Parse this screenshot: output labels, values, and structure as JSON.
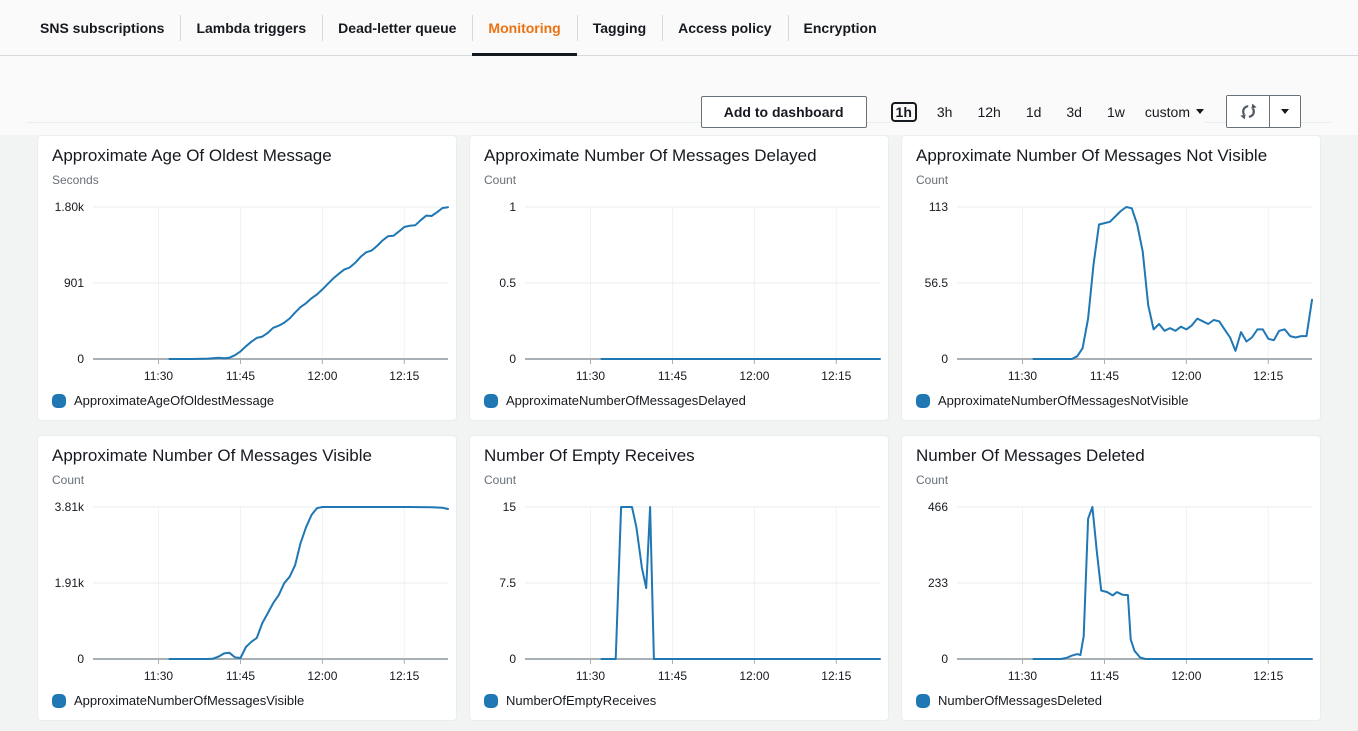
{
  "tabs": {
    "items": [
      {
        "label": "SNS subscriptions",
        "active": false
      },
      {
        "label": "Lambda triggers",
        "active": false
      },
      {
        "label": "Dead-letter queue",
        "active": false
      },
      {
        "label": "Monitoring",
        "active": true
      },
      {
        "label": "Tagging",
        "active": false
      },
      {
        "label": "Access policy",
        "active": false
      },
      {
        "label": "Encryption",
        "active": false
      }
    ]
  },
  "toolbar": {
    "add_to_dashboard": "Add to dashboard",
    "ranges": [
      {
        "label": "1h",
        "selected": true
      },
      {
        "label": "3h",
        "selected": false
      },
      {
        "label": "12h",
        "selected": false
      },
      {
        "label": "1d",
        "selected": false
      },
      {
        "label": "3d",
        "selected": false
      },
      {
        "label": "1w",
        "selected": false
      }
    ],
    "custom_label": "custom"
  },
  "colors": {
    "accent_orange": "#ec7211",
    "series_blue": "#1f77b4",
    "tab_underline": "#16191f",
    "axis_gray": "#a7b1b5",
    "grid_gray": "#e9eded"
  },
  "chart_data": [
    {
      "type": "line",
      "title": "Approximate Age Of Oldest Message",
      "ylabel": "Seconds",
      "legend": "ApproximateAgeOfOldestMessage",
      "color": "#1f77b4",
      "ymax": 1802,
      "yticks": [
        {
          "value": 0,
          "label": "0"
        },
        {
          "value": 901,
          "label": "901"
        },
        {
          "value": 1802,
          "label": "1.80k"
        }
      ],
      "x_domain_minutes": [
        678,
        743
      ],
      "xticks": [
        {
          "minute": 690,
          "label": "11:30"
        },
        {
          "minute": 705,
          "label": "11:45"
        },
        {
          "minute": 720,
          "label": "12:00"
        },
        {
          "minute": 735,
          "label": "12:15"
        }
      ],
      "grid": true,
      "legend_position": "bottom",
      "points": [
        [
          692,
          0
        ],
        [
          693,
          0
        ],
        [
          694,
          0
        ],
        [
          695,
          0
        ],
        [
          696,
          0
        ],
        [
          697,
          1
        ],
        [
          698,
          2
        ],
        [
          699,
          5
        ],
        [
          700,
          10
        ],
        [
          701,
          14
        ],
        [
          702,
          10
        ],
        [
          703,
          16
        ],
        [
          704,
          45
        ],
        [
          705,
          90
        ],
        [
          706,
          150
        ],
        [
          707,
          205
        ],
        [
          708,
          250
        ],
        [
          709,
          265
        ],
        [
          710,
          310
        ],
        [
          711,
          370
        ],
        [
          712,
          395
        ],
        [
          713,
          430
        ],
        [
          714,
          480
        ],
        [
          715,
          550
        ],
        [
          716,
          615
        ],
        [
          717,
          660
        ],
        [
          718,
          720
        ],
        [
          719,
          765
        ],
        [
          720,
          825
        ],
        [
          721,
          890
        ],
        [
          722,
          955
        ],
        [
          723,
          1010
        ],
        [
          724,
          1060
        ],
        [
          725,
          1085
        ],
        [
          726,
          1140
        ],
        [
          727,
          1210
        ],
        [
          728,
          1265
        ],
        [
          729,
          1285
        ],
        [
          730,
          1340
        ],
        [
          731,
          1405
        ],
        [
          732,
          1455
        ],
        [
          733,
          1460
        ],
        [
          734,
          1510
        ],
        [
          735,
          1565
        ],
        [
          736,
          1580
        ],
        [
          737,
          1585
        ],
        [
          738,
          1645
        ],
        [
          739,
          1700
        ],
        [
          740,
          1695
        ],
        [
          741,
          1740
        ],
        [
          742,
          1790
        ],
        [
          743,
          1800
        ]
      ]
    },
    {
      "type": "line",
      "title": "Approximate Number Of Messages Delayed",
      "ylabel": "Count",
      "legend": "ApproximateNumberOfMessagesDelayed",
      "color": "#1f77b4",
      "ymax": 1,
      "yticks": [
        {
          "value": 0,
          "label": "0"
        },
        {
          "value": 0.5,
          "label": "0.5"
        },
        {
          "value": 1,
          "label": "1"
        }
      ],
      "x_domain_minutes": [
        678,
        743
      ],
      "xticks": [
        {
          "minute": 690,
          "label": "11:30"
        },
        {
          "minute": 705,
          "label": "11:45"
        },
        {
          "minute": 720,
          "label": "12:00"
        },
        {
          "minute": 735,
          "label": "12:15"
        }
      ],
      "grid": true,
      "legend_position": "bottom",
      "points": [
        [
          692,
          0
        ],
        [
          700,
          0
        ],
        [
          710,
          0
        ],
        [
          720,
          0
        ],
        [
          730,
          0
        ],
        [
          743,
          0
        ]
      ]
    },
    {
      "type": "line",
      "title": "Approximate Number Of Messages Not Visible",
      "ylabel": "Count",
      "legend": "ApproximateNumberOfMessagesNotVisible",
      "color": "#1f77b4",
      "ymax": 113,
      "yticks": [
        {
          "value": 0,
          "label": "0"
        },
        {
          "value": 56.5,
          "label": "56.5"
        },
        {
          "value": 113,
          "label": "113"
        }
      ],
      "x_domain_minutes": [
        678,
        743
      ],
      "xticks": [
        {
          "minute": 690,
          "label": "11:30"
        },
        {
          "minute": 705,
          "label": "11:45"
        },
        {
          "minute": 720,
          "label": "12:00"
        },
        {
          "minute": 735,
          "label": "12:15"
        }
      ],
      "grid": true,
      "legend_position": "bottom",
      "points": [
        [
          692,
          0
        ],
        [
          694,
          0
        ],
        [
          696,
          0
        ],
        [
          698,
          0
        ],
        [
          699,
          0
        ],
        [
          700,
          2
        ],
        [
          701,
          8
        ],
        [
          702,
          30
        ],
        [
          703,
          70
        ],
        [
          704,
          100
        ],
        [
          705,
          101
        ],
        [
          706,
          102
        ],
        [
          707,
          106
        ],
        [
          708,
          110
        ],
        [
          709,
          113
        ],
        [
          710,
          112
        ],
        [
          711,
          100
        ],
        [
          712,
          80
        ],
        [
          713,
          40
        ],
        [
          714,
          22
        ],
        [
          715,
          26
        ],
        [
          716,
          21
        ],
        [
          717,
          23
        ],
        [
          718,
          21
        ],
        [
          719,
          24
        ],
        [
          720,
          22
        ],
        [
          721,
          25
        ],
        [
          722,
          30
        ],
        [
          723,
          28
        ],
        [
          724,
          26
        ],
        [
          725,
          29
        ],
        [
          726,
          28
        ],
        [
          727,
          22
        ],
        [
          728,
          16
        ],
        [
          729,
          6
        ],
        [
          730,
          20
        ],
        [
          731,
          13
        ],
        [
          732,
          16
        ],
        [
          733,
          22
        ],
        [
          734,
          22
        ],
        [
          735,
          15
        ],
        [
          736,
          14
        ],
        [
          737,
          21
        ],
        [
          738,
          22
        ],
        [
          739,
          17
        ],
        [
          740,
          16
        ],
        [
          741,
          17
        ],
        [
          742,
          17
        ],
        [
          743,
          44
        ]
      ]
    },
    {
      "type": "line",
      "title": "Approximate Number Of Messages Visible",
      "ylabel": "Count",
      "legend": "ApproximateNumberOfMessagesVisible",
      "color": "#1f77b4",
      "ymax": 3810,
      "yticks": [
        {
          "value": 0,
          "label": "0"
        },
        {
          "value": 1905,
          "label": "1.91k"
        },
        {
          "value": 3810,
          "label": "3.81k"
        }
      ],
      "x_domain_minutes": [
        678,
        743
      ],
      "xticks": [
        {
          "minute": 690,
          "label": "11:30"
        },
        {
          "minute": 705,
          "label": "11:45"
        },
        {
          "minute": 720,
          "label": "12:00"
        },
        {
          "minute": 735,
          "label": "12:15"
        }
      ],
      "grid": true,
      "legend_position": "bottom",
      "points": [
        [
          692,
          0
        ],
        [
          694,
          0
        ],
        [
          696,
          0
        ],
        [
          698,
          0
        ],
        [
          699,
          0
        ],
        [
          700,
          10
        ],
        [
          701,
          60
        ],
        [
          702,
          140
        ],
        [
          703,
          155
        ],
        [
          704,
          40
        ],
        [
          705,
          25
        ],
        [
          706,
          300
        ],
        [
          707,
          430
        ],
        [
          708,
          530
        ],
        [
          709,
          900
        ],
        [
          710,
          1150
        ],
        [
          711,
          1400
        ],
        [
          712,
          1600
        ],
        [
          713,
          1900
        ],
        [
          714,
          2060
        ],
        [
          715,
          2350
        ],
        [
          716,
          2900
        ],
        [
          717,
          3300
        ],
        [
          718,
          3610
        ],
        [
          719,
          3780
        ],
        [
          720,
          3810
        ],
        [
          724,
          3810
        ],
        [
          728,
          3810
        ],
        [
          732,
          3810
        ],
        [
          736,
          3810
        ],
        [
          740,
          3805
        ],
        [
          742,
          3790
        ],
        [
          743,
          3760
        ]
      ]
    },
    {
      "type": "line",
      "title": "Number Of Empty Receives",
      "ylabel": "Count",
      "legend": "NumberOfEmptyReceives",
      "color": "#1f77b4",
      "ymax": 15,
      "yticks": [
        {
          "value": 0,
          "label": "0"
        },
        {
          "value": 7.5,
          "label": "7.5"
        },
        {
          "value": 15,
          "label": "15"
        }
      ],
      "x_domain_minutes": [
        678,
        743
      ],
      "xticks": [
        {
          "minute": 690,
          "label": "11:30"
        },
        {
          "minute": 705,
          "label": "11:45"
        },
        {
          "minute": 720,
          "label": "12:00"
        },
        {
          "minute": 735,
          "label": "12:15"
        }
      ],
      "grid": true,
      "legend_position": "bottom",
      "points": [
        [
          692,
          0
        ],
        [
          693,
          0
        ],
        [
          694,
          0
        ],
        [
          694.6,
          0
        ],
        [
          695.6,
          15
        ],
        [
          696.6,
          15
        ],
        [
          697.6,
          15
        ],
        [
          698.4,
          13
        ],
        [
          699.4,
          9
        ],
        [
          700.2,
          7
        ],
        [
          700.9,
          15
        ],
        [
          701.6,
          0
        ],
        [
          704,
          0
        ],
        [
          708,
          0
        ],
        [
          714,
          0
        ],
        [
          720,
          0
        ],
        [
          728,
          0
        ],
        [
          736,
          0
        ],
        [
          743,
          0
        ]
      ]
    },
    {
      "type": "line",
      "title": "Number Of Messages Deleted",
      "ylabel": "Count",
      "legend": "NumberOfMessagesDeleted",
      "color": "#1f77b4",
      "ymax": 466,
      "yticks": [
        {
          "value": 0,
          "label": "0"
        },
        {
          "value": 233,
          "label": "233"
        },
        {
          "value": 466,
          "label": "466"
        }
      ],
      "x_domain_minutes": [
        678,
        743
      ],
      "xticks": [
        {
          "minute": 690,
          "label": "11:30"
        },
        {
          "minute": 705,
          "label": "11:45"
        },
        {
          "minute": 720,
          "label": "12:00"
        },
        {
          "minute": 735,
          "label": "12:15"
        }
      ],
      "grid": true,
      "legend_position": "bottom",
      "points": [
        [
          692,
          0
        ],
        [
          694,
          0
        ],
        [
          696,
          0
        ],
        [
          697,
          0
        ],
        [
          698,
          3
        ],
        [
          699,
          10
        ],
        [
          700,
          15
        ],
        [
          700.6,
          12
        ],
        [
          701.2,
          70
        ],
        [
          702,
          430
        ],
        [
          702.8,
          466
        ],
        [
          703.6,
          330
        ],
        [
          704.4,
          210
        ],
        [
          705.5,
          205
        ],
        [
          706.5,
          195
        ],
        [
          707.3,
          205
        ],
        [
          708.3,
          197
        ],
        [
          709.3,
          196
        ],
        [
          709.8,
          60
        ],
        [
          710.5,
          25
        ],
        [
          711.5,
          5
        ],
        [
          712.5,
          0
        ],
        [
          716,
          0
        ],
        [
          722,
          0
        ],
        [
          730,
          0
        ],
        [
          738,
          0
        ],
        [
          743,
          0
        ]
      ]
    }
  ]
}
